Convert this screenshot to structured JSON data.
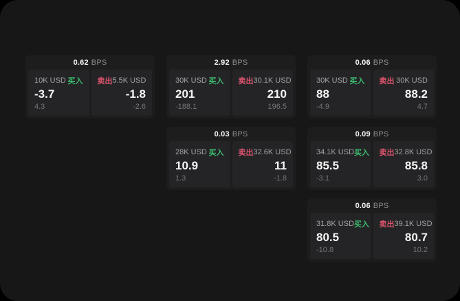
{
  "labels": {
    "bps_unit": "BPS",
    "buy": "买入",
    "sell": "卖出"
  },
  "colors": {
    "screen_bg": "#171718",
    "card_bg": "#1d1d1e",
    "panel_bg": "#242426",
    "buy_accent": "#3cb96e",
    "sell_accent": "#d8536c",
    "value_text": "#f5f5f5",
    "muted_text": "#a3a3a3",
    "unit_text": "#8c8c8c",
    "faint_text": "#757575"
  },
  "cards": [
    {
      "bps": "0.62",
      "buy": {
        "size": "10K USD",
        "value": "-3.7",
        "delta": "4.3"
      },
      "sell": {
        "size": "5.5K USD",
        "value": "-1.8",
        "delta": "-2.6"
      }
    },
    {
      "bps": "2.92",
      "buy": {
        "size": "30K USD",
        "value": "201",
        "delta": "-188.1"
      },
      "sell": {
        "size": "30.1K USD",
        "value": "210",
        "delta": "196.5"
      }
    },
    {
      "bps": "0.06",
      "buy": {
        "size": "30K USD",
        "value": "88",
        "delta": "-4.9"
      },
      "sell": {
        "size": "30K USD",
        "value": "88.2",
        "delta": "4.7"
      }
    },
    {
      "bps": "0.03",
      "buy": {
        "size": "28K USD",
        "value": "10.9",
        "delta": "1.3"
      },
      "sell": {
        "size": "32.6K USD",
        "value": "11",
        "delta": "-1.8"
      }
    },
    {
      "bps": "0.09",
      "buy": {
        "size": "34.1K USD",
        "value": "85.5",
        "delta": "-3.1"
      },
      "sell": {
        "size": "32.8K USD",
        "value": "85.8",
        "delta": "3.0"
      }
    },
    {
      "bps": "0.06",
      "buy": {
        "size": "31.8K USD",
        "value": "80.5",
        "delta": "-10.8"
      },
      "sell": {
        "size": "39.1K USD",
        "value": "80.7",
        "delta": "10.2"
      }
    }
  ]
}
